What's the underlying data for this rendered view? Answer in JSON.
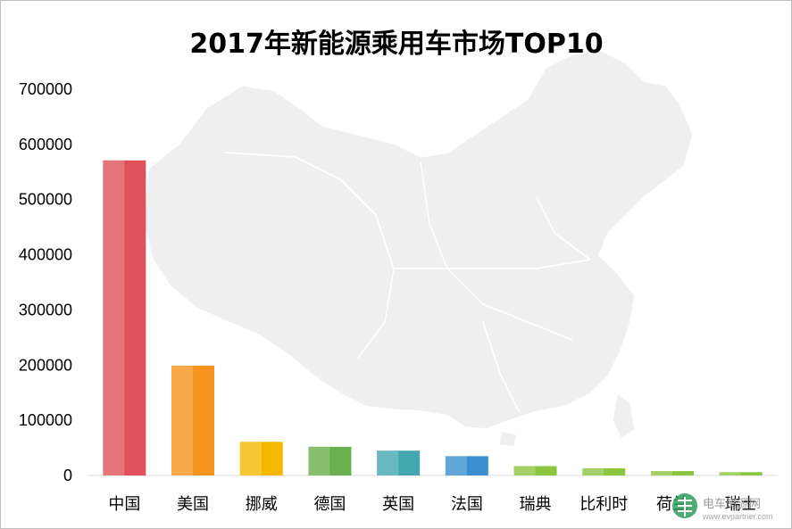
{
  "chart_data": {
    "type": "bar",
    "title": "2017年新能源乘用车市场TOP10",
    "categories": [
      "中国",
      "美国",
      "挪威",
      "德国",
      "英国",
      "法国",
      "瑞典",
      "比利时",
      "荷兰",
      "瑞士"
    ],
    "values": [
      571000,
      199000,
      61000,
      52000,
      45000,
      35000,
      17000,
      13000,
      8000,
      6000
    ],
    "colors": [
      "#e0525b",
      "#f7941d",
      "#f5b800",
      "#6ab04c",
      "#44a7b0",
      "#3a8fd0",
      "#8cc63f",
      "#8cc63f",
      "#8cc63f",
      "#8cc63f"
    ],
    "ylim": [
      0,
      700000
    ],
    "yticks": [
      "0",
      "100000",
      "200000",
      "300000",
      "400000",
      "500000",
      "600000",
      "700000"
    ],
    "xlabel": "",
    "ylabel": "",
    "grid": false,
    "background": "faint grey map of China"
  },
  "watermark": {
    "text": "电车资源网",
    "url": "www.evpartner.com"
  }
}
